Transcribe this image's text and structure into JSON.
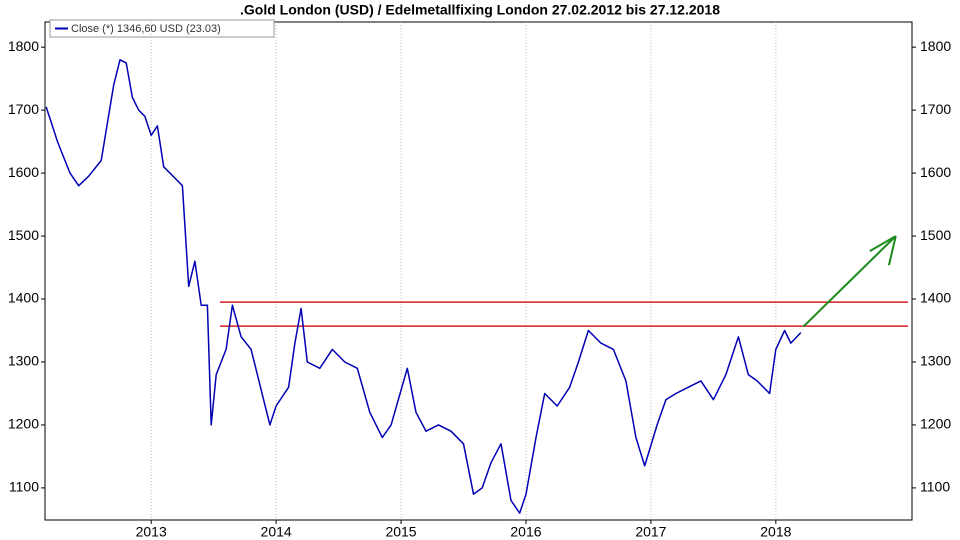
{
  "chart_data": {
    "type": "line",
    "title": ".Gold London (USD) / Edelmetallfixing London 27.02.2012 bis 27.12.2018",
    "series": [
      {
        "name": "Close (*) 1346,60 USD (23.03)",
        "color": "#0000b4",
        "x": [
          2012.16,
          2012.25,
          2012.35,
          2012.42,
          2012.5,
          2012.6,
          2012.7,
          2012.75,
          2012.8,
          2012.85,
          2012.9,
          2012.95,
          2013.0,
          2013.05,
          2013.1,
          2013.2,
          2013.25,
          2013.3,
          2013.35,
          2013.4,
          2013.45,
          2013.48,
          2013.52,
          2013.6,
          2013.65,
          2013.72,
          2013.8,
          2013.9,
          2013.95,
          2014.0,
          2014.1,
          2014.15,
          2014.2,
          2014.25,
          2014.35,
          2014.45,
          2014.55,
          2014.65,
          2014.75,
          2014.85,
          2014.92,
          2015.05,
          2015.12,
          2015.2,
          2015.3,
          2015.4,
          2015.5,
          2015.58,
          2015.65,
          2015.72,
          2015.8,
          2015.88,
          2015.95,
          2016.0,
          2016.08,
          2016.15,
          2016.25,
          2016.35,
          2016.42,
          2016.5,
          2016.6,
          2016.7,
          2016.8,
          2016.88,
          2016.95,
          2017.05,
          2017.12,
          2017.2,
          2017.3,
          2017.4,
          2017.5,
          2017.6,
          2017.7,
          2017.78,
          2017.85,
          2017.95,
          2018.0,
          2018.07,
          2018.12,
          2018.2
        ],
        "values": [
          1705,
          1650,
          1600,
          1580,
          1595,
          1620,
          1740,
          1780,
          1775,
          1720,
          1700,
          1690,
          1660,
          1675,
          1610,
          1590,
          1580,
          1420,
          1460,
          1390,
          1390,
          1200,
          1280,
          1320,
          1390,
          1340,
          1320,
          1240,
          1200,
          1230,
          1260,
          1330,
          1385,
          1300,
          1290,
          1320,
          1300,
          1290,
          1220,
          1180,
          1200,
          1290,
          1220,
          1190,
          1200,
          1190,
          1170,
          1090,
          1100,
          1140,
          1170,
          1080,
          1060,
          1090,
          1180,
          1250,
          1230,
          1260,
          1300,
          1350,
          1330,
          1320,
          1270,
          1180,
          1135,
          1200,
          1240,
          1250,
          1260,
          1270,
          1240,
          1280,
          1340,
          1280,
          1270,
          1250,
          1320,
          1350,
          1330,
          1346.6
        ]
      }
    ],
    "reference_lines": [
      {
        "value": 1395,
        "x_start": 2013.55,
        "color": "#d42020"
      },
      {
        "value": 1357,
        "x_start": 2013.55,
        "color": "#d42020"
      }
    ],
    "arrow": {
      "x": [
        2018.22,
        2018.96
      ],
      "y": [
        1356,
        1500
      ],
      "color": "#1a8a1a"
    },
    "xlim": [
      2012.15,
      2019.09
    ],
    "xticks": [
      2013,
      2014,
      2015,
      2016,
      2017,
      2018
    ],
    "ylim": [
      1049,
      1840
    ],
    "yticks": [
      1100,
      1200,
      1300,
      1400,
      1500,
      1600,
      1700,
      1800
    ],
    "grid": "x"
  }
}
